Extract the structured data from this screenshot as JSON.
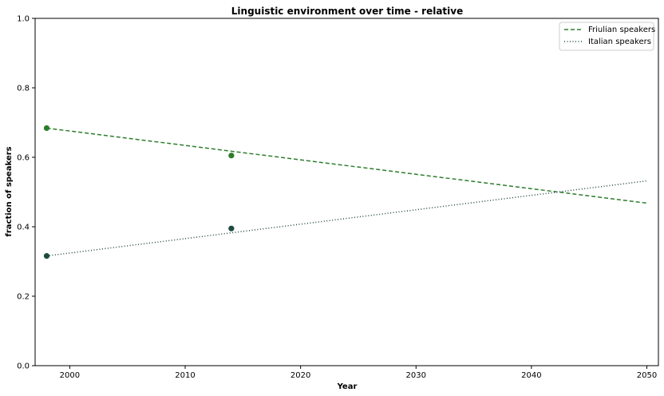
{
  "chart_data": {
    "type": "line",
    "title": "Linguistic environment over time - relative",
    "xlabel": "Year",
    "ylabel": "fraction of speakers",
    "xlim": [
      1997,
      2051
    ],
    "ylim": [
      0.0,
      1.0
    ],
    "xticks": [
      2000,
      2010,
      2020,
      2030,
      2040,
      2050
    ],
    "yticks": [
      0.0,
      0.2,
      0.4,
      0.6,
      0.8,
      1.0
    ],
    "ytick_labels": [
      "0.0",
      "0.2",
      "0.4",
      "0.6",
      "0.8",
      "1.0"
    ],
    "grid": false,
    "legend_position": "top-right",
    "series": [
      {
        "name": "Friulian speakers",
        "color": "#2d7d2d",
        "linestyle": "dashed",
        "x": [
          1998,
          2050
        ],
        "y": [
          0.684,
          0.468
        ],
        "points": {
          "x": [
            1998,
            2014
          ],
          "y": [
            0.684,
            0.605
          ]
        }
      },
      {
        "name": "Italian speakers",
        "color": "#1f4a40",
        "linestyle": "dotted",
        "x": [
          1998,
          2050
        ],
        "y": [
          0.316,
          0.532
        ],
        "points": {
          "x": [
            1998,
            2014
          ],
          "y": [
            0.316,
            0.395
          ]
        }
      }
    ]
  }
}
